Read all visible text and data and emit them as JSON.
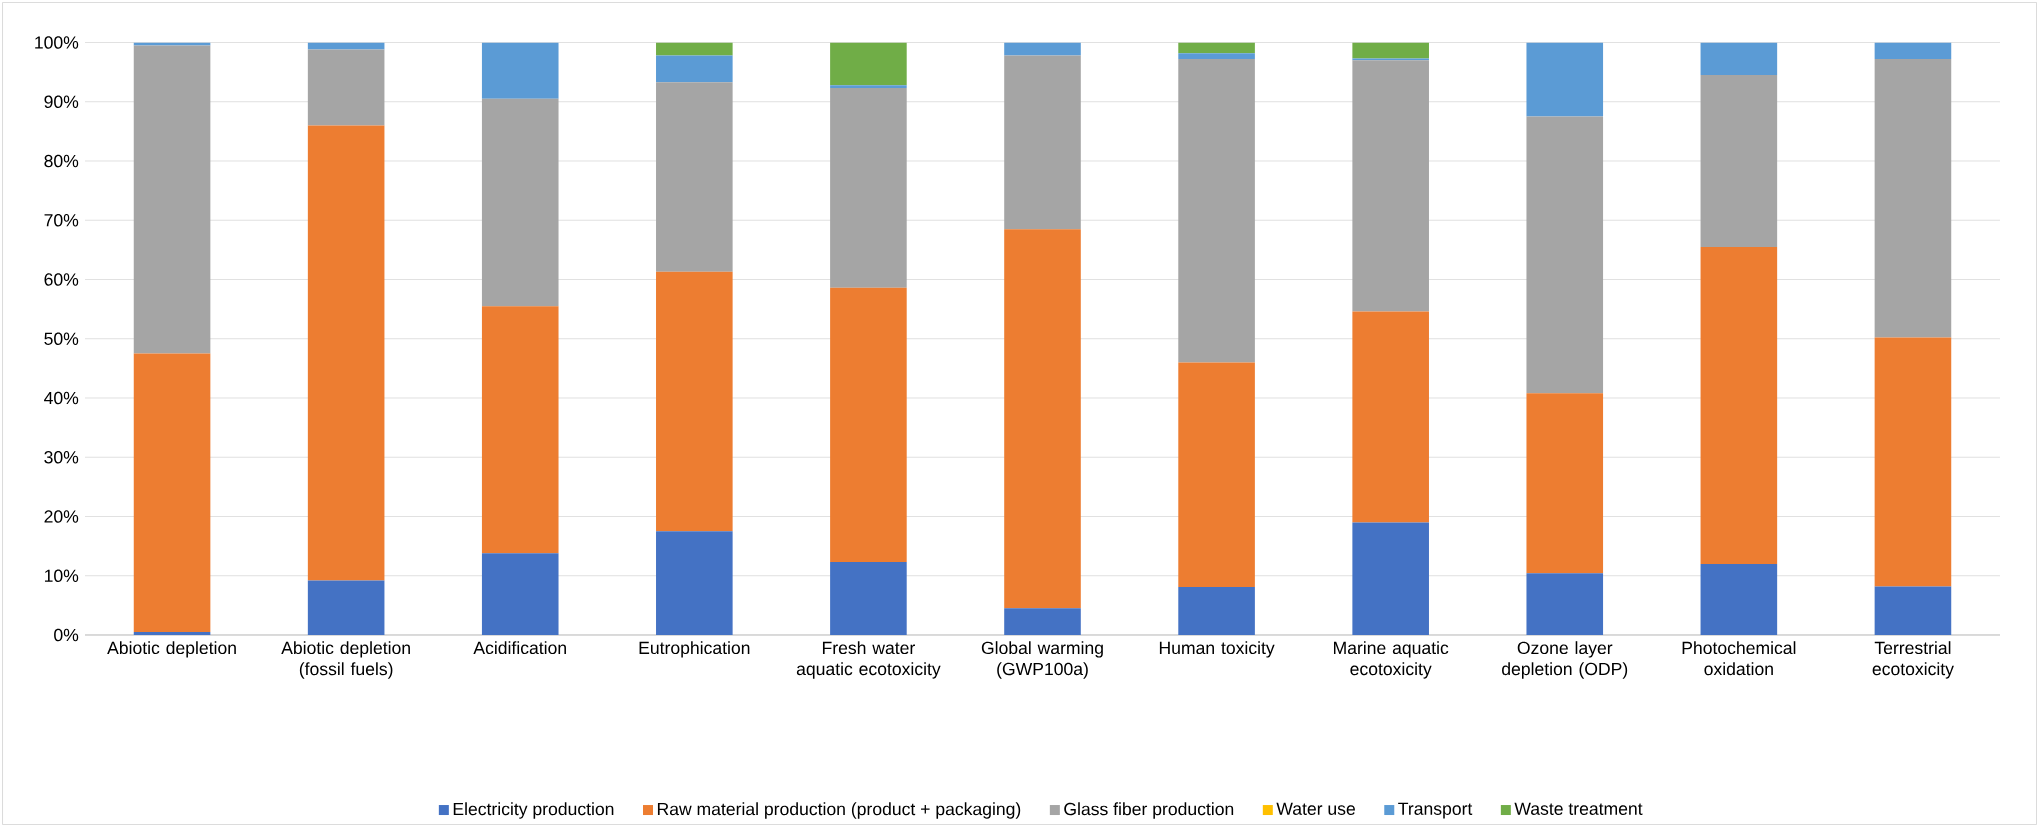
{
  "chart_data": {
    "type": "bar",
    "stacked": true,
    "grid": "y",
    "legend": "bottom",
    "categories": [
      "Abiotic depletion",
      "Abiotic depletion (fossil fuels)",
      "Acidification",
      "Eutrophication",
      "Fresh water aquatic ecotoxicity",
      "Global warming (GWP100a)",
      "Human toxicity",
      "Marine aquatic ecotoxicity",
      "Ozone layer depletion (ODP)",
      "Photochemical oxidation",
      "Terrestrial ecotoxicity"
    ],
    "ylim": [
      0,
      100
    ],
    "yticks": [
      {
        "value": 0,
        "label": "0%"
      },
      {
        "value": 10,
        "label": "10%"
      },
      {
        "value": 20,
        "label": "20%"
      },
      {
        "value": 30,
        "label": "30%"
      },
      {
        "value": 40,
        "label": "40%"
      },
      {
        "value": 50,
        "label": "50%"
      },
      {
        "value": 60,
        "label": "60%"
      },
      {
        "value": 70,
        "label": "70%"
      },
      {
        "value": 80,
        "label": "80%"
      },
      {
        "value": 90,
        "label": "90%"
      },
      {
        "value": 100,
        "label": "100%"
      }
    ],
    "series": [
      {
        "name": "Electricity production",
        "color": "#4472c4",
        "values": [
          0.5,
          9.2,
          13.8,
          17.5,
          12.3,
          4.5,
          8.1,
          19.0,
          10.4,
          12.0,
          8.2
        ]
      },
      {
        "name": "Raw material production (product + packaging)",
        "color": "#ed7d31",
        "values": [
          47.0,
          76.8,
          41.7,
          43.8,
          46.3,
          64.0,
          37.9,
          35.6,
          30.4,
          53.5,
          42.0
        ]
      },
      {
        "name": "Glass fiber production",
        "color": "#a5a5a5",
        "values": [
          52.0,
          12.8,
          35.0,
          32.0,
          33.7,
          29.3,
          51.2,
          42.4,
          46.7,
          29.0,
          47.0
        ]
      },
      {
        "name": "Water use",
        "color": "#ffc000",
        "values": [
          0,
          0,
          0,
          0,
          0,
          0,
          0,
          0,
          0,
          0,
          0
        ]
      },
      {
        "name": "Transport",
        "color": "#5b9bd5",
        "values": [
          0.5,
          1.2,
          9.5,
          4.5,
          0.5,
          2.2,
          1.0,
          0.3,
          12.5,
          5.5,
          2.8
        ]
      },
      {
        "name": "Waste treatment",
        "color": "#70ad47",
        "values": [
          0,
          0,
          0,
          2.2,
          7.2,
          0,
          1.8,
          2.7,
          0,
          0,
          0
        ]
      }
    ]
  }
}
